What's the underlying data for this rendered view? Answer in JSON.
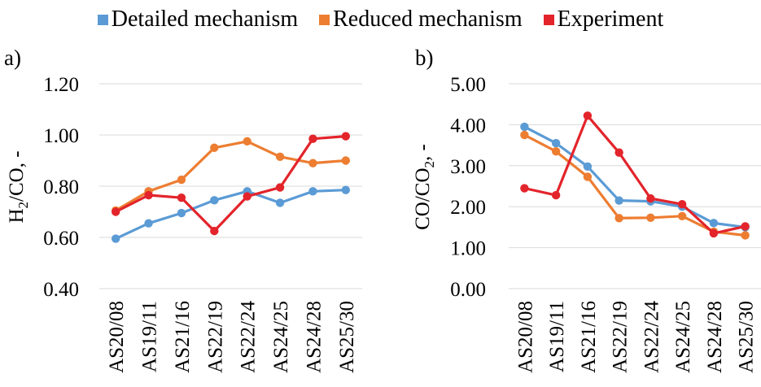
{
  "legend": [
    {
      "name": "Detailed mechanism",
      "color": "#5B9BD5"
    },
    {
      "name": "Reduced mechanism",
      "color": "#ED7D31"
    },
    {
      "name": "Experiment",
      "color": "#E3242B"
    }
  ],
  "chart_data": [
    {
      "type": "line",
      "panel_label": "a)",
      "title": "",
      "ylabel_parts": [
        "H",
        "2",
        "/CO, -"
      ],
      "ylim": [
        0.4,
        1.2
      ],
      "yticks": [
        0.4,
        0.6,
        0.8,
        1.0,
        1.2
      ],
      "ytick_labels": [
        "0.40",
        "0.60",
        "0.80",
        "1.00",
        "1.20"
      ],
      "grid": true,
      "legend_position": "top",
      "categories": [
        "AS20/08",
        "AS19/11",
        "AS21/16",
        "AS22/19",
        "AS22/24",
        "AS24/25",
        "AS24/28",
        "AS25/30"
      ],
      "series": [
        {
          "name": "Detailed mechanism",
          "color": "#5B9BD5",
          "values": [
            0.595,
            0.655,
            0.695,
            0.745,
            0.78,
            0.735,
            0.78,
            0.785
          ]
        },
        {
          "name": "Reduced mechanism",
          "color": "#ED7D31",
          "values": [
            0.705,
            0.78,
            0.825,
            0.95,
            0.975,
            0.915,
            0.89,
            0.9
          ]
        },
        {
          "name": "Experiment",
          "color": "#E3242B",
          "values": [
            0.7,
            0.765,
            0.755,
            0.625,
            0.76,
            0.795,
            0.985,
            0.995
          ]
        }
      ]
    },
    {
      "type": "line",
      "panel_label": "b)",
      "title": "",
      "ylabel_parts": [
        "CO/CO",
        "2",
        ", -"
      ],
      "ylim": [
        0,
        5
      ],
      "yticks": [
        0,
        1,
        2,
        3,
        4,
        5
      ],
      "ytick_labels": [
        "0.00",
        "1.00",
        "2.00",
        "3.00",
        "4.00",
        "5.00"
      ],
      "grid": true,
      "legend_position": "top",
      "categories": [
        "AS20/08",
        "AS19/11",
        "AS21/16",
        "AS22/19",
        "AS22/24",
        "AS24/25",
        "AS24/28",
        "AS25/30"
      ],
      "series": [
        {
          "name": "Detailed mechanism",
          "color": "#5B9BD5",
          "values": [
            3.95,
            3.55,
            2.98,
            2.15,
            2.13,
            2.0,
            1.6,
            1.5
          ]
        },
        {
          "name": "Reduced mechanism",
          "color": "#ED7D31",
          "values": [
            3.75,
            3.35,
            2.73,
            1.72,
            1.73,
            1.77,
            1.39,
            1.3
          ]
        },
        {
          "name": "Experiment",
          "color": "#E3242B",
          "values": [
            2.45,
            2.28,
            4.22,
            3.32,
            2.2,
            2.06,
            1.35,
            1.52
          ]
        }
      ]
    }
  ]
}
